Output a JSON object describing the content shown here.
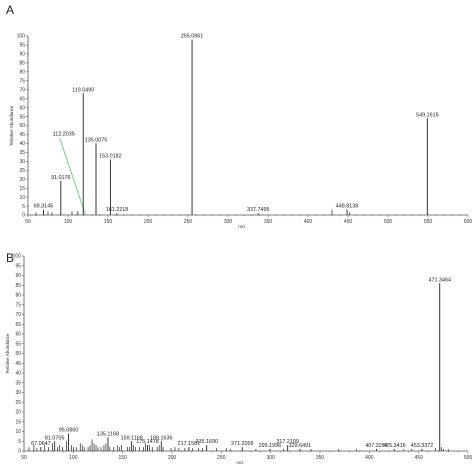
{
  "chart_data": [
    {
      "type": "bar",
      "panel_label": "A",
      "xlabel": "m/z",
      "ylabel": "Relative Abundance",
      "xlim": [
        50,
        600
      ],
      "ylim": [
        0,
        100
      ],
      "x_ticks": [
        50,
        100,
        150,
        200,
        250,
        300,
        350,
        400,
        450,
        500,
        550,
        600
      ],
      "y_ticks": [
        0,
        5,
        10,
        15,
        20,
        25,
        30,
        35,
        40,
        45,
        50,
        55,
        60,
        65,
        70,
        75,
        80,
        85,
        90,
        95,
        100
      ],
      "peaks": [
        {
          "mz": 69.3145,
          "intensity": 3,
          "label": "69.3145"
        },
        {
          "mz": 91.0176,
          "intensity": 19,
          "label": "91.0176"
        },
        {
          "mz": 112.2035,
          "intensity": 2,
          "label": "112.2035"
        },
        {
          "mz": 119.049,
          "intensity": 68,
          "label": "119.0490"
        },
        {
          "mz": 135.0075,
          "intensity": 40,
          "label": "135.0075"
        },
        {
          "mz": 153.0182,
          "intensity": 31,
          "label": "153.0182"
        },
        {
          "mz": 161.2218,
          "intensity": 1,
          "label": "161.2218"
        },
        {
          "mz": 255.0861,
          "intensity": 98,
          "label": "255.0861"
        },
        {
          "mz": 337.7495,
          "intensity": 1,
          "label": "337.7495"
        },
        {
          "mz": 448.8138,
          "intensity": 3,
          "label": "448.8138"
        },
        {
          "mz": 549.1615,
          "intensity": 54,
          "label": "549.1615"
        }
      ],
      "minor_peaks": [
        {
          "mz": 60,
          "intensity": 1.5
        },
        {
          "mz": 75,
          "intensity": 2
        },
        {
          "mz": 80,
          "intensity": 1.5
        },
        {
          "mz": 105,
          "intensity": 2
        },
        {
          "mz": 430,
          "intensity": 3
        },
        {
          "mz": 452,
          "intensity": 1.5
        }
      ],
      "annotation": {
        "from_label": "112.2035",
        "to_mz": 122,
        "color": "#55c66f"
      }
    },
    {
      "type": "bar",
      "panel_label": "B",
      "xlabel": "m/z",
      "ylabel": "Relative Abundance",
      "xlim": [
        50,
        500
      ],
      "ylim": [
        0,
        100
      ],
      "x_ticks": [
        50,
        100,
        150,
        200,
        250,
        300,
        350,
        400,
        450,
        500
      ],
      "y_ticks": [
        0,
        5,
        10,
        15,
        20,
        25,
        30,
        35,
        40,
        45,
        50,
        55,
        60,
        65,
        70,
        75,
        80,
        85,
        90,
        95,
        100
      ],
      "peaks": [
        {
          "mz": 67.0647,
          "intensity": 2,
          "label": "67.0647"
        },
        {
          "mz": 81.0705,
          "intensity": 5,
          "label": "81.0705"
        },
        {
          "mz": 95.086,
          "intensity": 9,
          "label": "95.0860"
        },
        {
          "mz": 135.1168,
          "intensity": 7,
          "label": "135.1168"
        },
        {
          "mz": 159.1168,
          "intensity": 5,
          "label": "159.1168"
        },
        {
          "mz": 175.1478,
          "intensity": 3,
          "label": "175.1478"
        },
        {
          "mz": 189.1636,
          "intensity": 5,
          "label": "189.1636"
        },
        {
          "mz": 217.1581,
          "intensity": 2,
          "label": "217.1581"
        },
        {
          "mz": 235.169,
          "intensity": 3,
          "label": "235.1690"
        },
        {
          "mz": 271.2059,
          "intensity": 2,
          "label": "271.2059"
        },
        {
          "mz": 299.1996,
          "intensity": 1,
          "label": "299.1996"
        },
        {
          "mz": 317.2109,
          "intensity": 3,
          "label": "317.2109"
        },
        {
          "mz": 329.6491,
          "intensity": 1,
          "label": "329.6491"
        },
        {
          "mz": 407.3254,
          "intensity": 1,
          "label": "407.3254"
        },
        {
          "mz": 425.3416,
          "intensity": 1,
          "label": "425.3416"
        },
        {
          "mz": 453.3372,
          "intensity": 1,
          "label": "453.3372"
        },
        {
          "mz": 471.3464,
          "intensity": 86,
          "label": "471.3464"
        }
      ],
      "minor_peaks": [
        {
          "mz": 55,
          "intensity": 2
        },
        {
          "mz": 60,
          "intensity": 3
        },
        {
          "mz": 63,
          "intensity": 1.5
        },
        {
          "mz": 71,
          "intensity": 3
        },
        {
          "mz": 75,
          "intensity": 2
        },
        {
          "mz": 79,
          "intensity": 4
        },
        {
          "mz": 84,
          "intensity": 2
        },
        {
          "mz": 86,
          "intensity": 3
        },
        {
          "mz": 89,
          "intensity": 2
        },
        {
          "mz": 93,
          "intensity": 5
        },
        {
          "mz": 98,
          "intensity": 3
        },
        {
          "mz": 100,
          "intensity": 2
        },
        {
          "mz": 103,
          "intensity": 2
        },
        {
          "mz": 107,
          "intensity": 4
        },
        {
          "mz": 109,
          "intensity": 3
        },
        {
          "mz": 111,
          "intensity": 2
        },
        {
          "mz": 115,
          "intensity": 2
        },
        {
          "mz": 117,
          "intensity": 3
        },
        {
          "mz": 119,
          "intensity": 6
        },
        {
          "mz": 121,
          "intensity": 4
        },
        {
          "mz": 123,
          "intensity": 3
        },
        {
          "mz": 125,
          "intensity": 2
        },
        {
          "mz": 128,
          "intensity": 2
        },
        {
          "mz": 131,
          "intensity": 3
        },
        {
          "mz": 133,
          "intensity": 4
        },
        {
          "mz": 137,
          "intensity": 2
        },
        {
          "mz": 141,
          "intensity": 2
        },
        {
          "mz": 145,
          "intensity": 3
        },
        {
          "mz": 147,
          "intensity": 2
        },
        {
          "mz": 149,
          "intensity": 3
        },
        {
          "mz": 155,
          "intensity": 2
        },
        {
          "mz": 157,
          "intensity": 2
        },
        {
          "mz": 161,
          "intensity": 3
        },
        {
          "mz": 163,
          "intensity": 2
        },
        {
          "mz": 167,
          "intensity": 2
        },
        {
          "mz": 171,
          "intensity": 2
        },
        {
          "mz": 173,
          "intensity": 4
        },
        {
          "mz": 177,
          "intensity": 3
        },
        {
          "mz": 180,
          "intensity": 2
        },
        {
          "mz": 185,
          "intensity": 2
        },
        {
          "mz": 187,
          "intensity": 3
        },
        {
          "mz": 191,
          "intensity": 2
        },
        {
          "mz": 199,
          "intensity": 1.5
        },
        {
          "mz": 203,
          "intensity": 2
        },
        {
          "mz": 207,
          "intensity": 1.5
        },
        {
          "mz": 213,
          "intensity": 1.5
        },
        {
          "mz": 221,
          "intensity": 1.5
        },
        {
          "mz": 227,
          "intensity": 1.5
        },
        {
          "mz": 231,
          "intensity": 1.5
        },
        {
          "mz": 245,
          "intensity": 1.5
        },
        {
          "mz": 255,
          "intensity": 1.5
        },
        {
          "mz": 259,
          "intensity": 1
        },
        {
          "mz": 285,
          "intensity": 1
        },
        {
          "mz": 313,
          "intensity": 1
        },
        {
          "mz": 341,
          "intensity": 1
        },
        {
          "mz": 369,
          "intensity": 1
        },
        {
          "mz": 387,
          "intensity": 1
        },
        {
          "mz": 435,
          "intensity": 1
        },
        {
          "mz": 443,
          "intensity": 1
        },
        {
          "mz": 467,
          "intensity": 1.5
        },
        {
          "mz": 473,
          "intensity": 2
        },
        {
          "mz": 475,
          "intensity": 1
        },
        {
          "mz": 480,
          "intensity": 1
        }
      ]
    }
  ]
}
